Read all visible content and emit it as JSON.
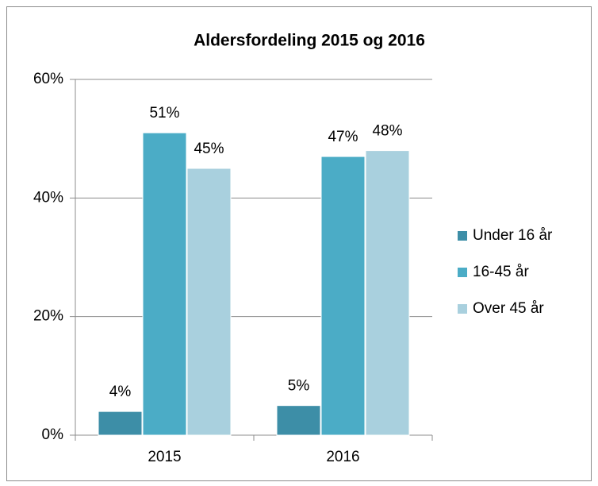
{
  "chart_data": {
    "type": "bar",
    "title": "Aldersfordeling 2015 og 2016",
    "categories": [
      "2015",
      "2016"
    ],
    "series": [
      {
        "name": "Under 16 år",
        "color": "#3d8ea7",
        "values": [
          4,
          5
        ],
        "value_labels": [
          "4%",
          "5%"
        ]
      },
      {
        "name": "16-45 år",
        "color": "#4bacc6",
        "values": [
          51,
          47
        ],
        "value_labels": [
          "51%",
          "47%"
        ]
      },
      {
        "name": "Over 45 år",
        "color": "#a9d0de",
        "values": [
          45,
          48
        ],
        "value_labels": [
          "45%",
          "48%"
        ]
      }
    ],
    "ylim": [
      0,
      60
    ],
    "yticks": [
      {
        "value": 0,
        "label": "0%"
      },
      {
        "value": 20,
        "label": "20%"
      },
      {
        "value": 40,
        "label": "40%"
      },
      {
        "value": 60,
        "label": "60%"
      }
    ],
    "grid": true,
    "legend": "right"
  }
}
